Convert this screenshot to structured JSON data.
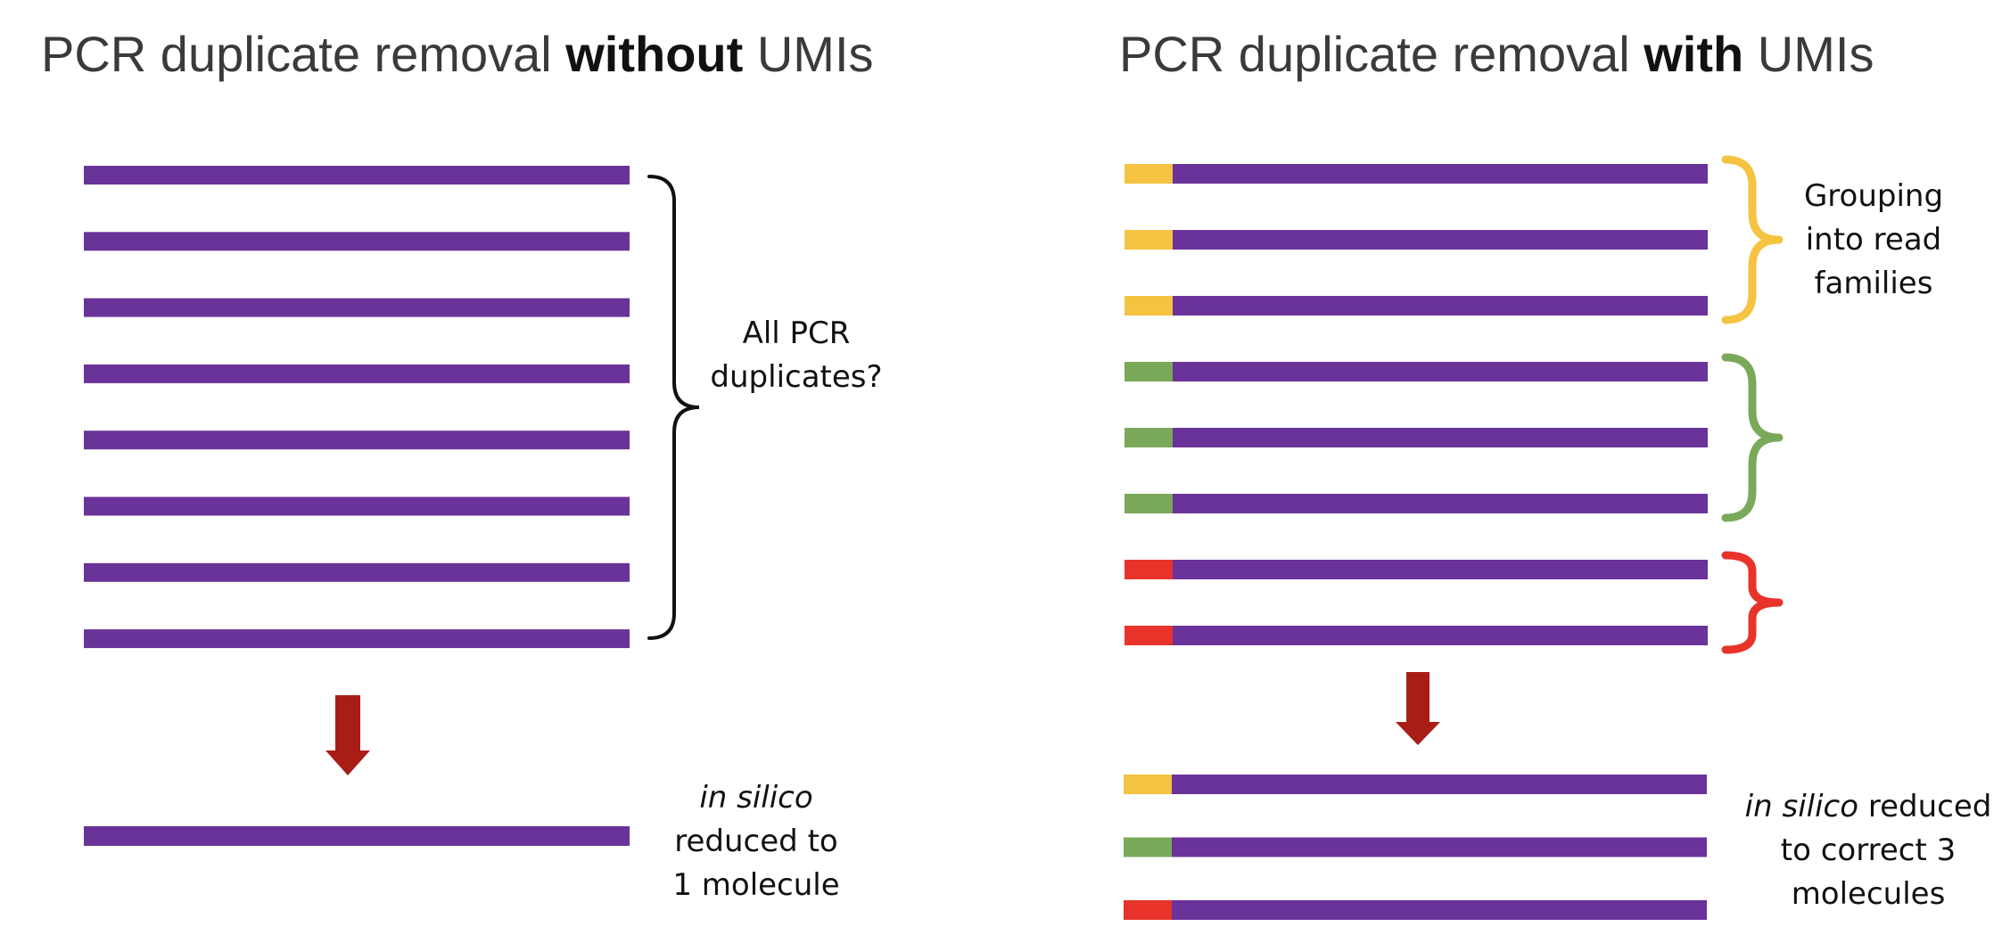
{
  "colors": {
    "read": "#6a3399",
    "umi_yellow": "#f5c342",
    "umi_green": "#7aa95a",
    "umi_red": "#e8332a",
    "arrow": "#a81e17",
    "brace_black": "#111111"
  },
  "left_panel": {
    "title_prefix": "PCR duplicate removal ",
    "title_bold": "without",
    "title_suffix": " UMIs",
    "brace_label": [
      "All PCR",
      "duplicates?"
    ],
    "result_italic": "in silico",
    "result_lines": [
      "reduced to",
      "1 molecule"
    ],
    "input_read_count": 8,
    "output_read_count": 1
  },
  "right_panel": {
    "title_prefix": "PCR duplicate removal ",
    "title_bold": "with",
    "title_suffix": " UMIs",
    "brace_label": [
      "Grouping",
      "into read",
      "families"
    ],
    "result_italic": "in silico",
    "result_line1_rest": " reduced",
    "result_lines": [
      "to correct 3",
      "molecules"
    ],
    "input_read_umis": [
      "yellow",
      "yellow",
      "yellow",
      "green",
      "green",
      "green",
      "red",
      "red"
    ],
    "output_read_umis": [
      "yellow",
      "green",
      "red"
    ]
  }
}
